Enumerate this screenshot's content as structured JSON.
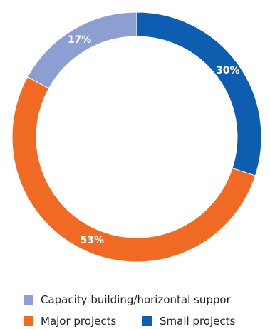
{
  "chart_data": {
    "type": "pie",
    "donut": true,
    "start_angle_deg": 0,
    "direction": "clockwise",
    "slices": [
      {
        "name": "Small projects",
        "value": 30,
        "label": "30%",
        "color": "#0d5eb0"
      },
      {
        "name": "Major projects",
        "value": 53,
        "label": "53%",
        "color": "#f06a23"
      },
      {
        "name": "Capacity building/horizontal suppor",
        "value": 17,
        "label": "17%",
        "color": "#8b9fd3"
      }
    ],
    "legend": {
      "placement": "bottom",
      "order": [
        "Capacity building/horizontal suppor",
        "Major projects",
        "Small projects"
      ]
    }
  }
}
